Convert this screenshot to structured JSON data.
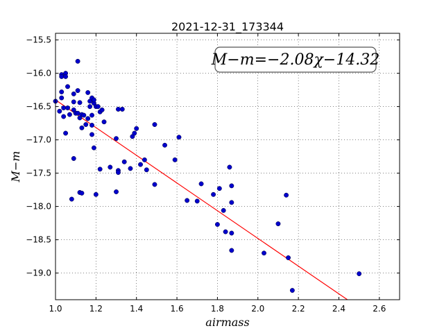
{
  "chart_data": {
    "type": "scatter",
    "title": "2021-12-31_173344",
    "xlabel": "airmass",
    "ylabel": "M−m",
    "annotation": "M−m=−2.08χ−14.32",
    "xlim": [
      1.0,
      2.7
    ],
    "ylim": [
      -19.4,
      -15.4
    ],
    "y_inverted": true,
    "grid": true,
    "x_ticks": [
      1.0,
      1.2,
      1.4,
      1.6,
      1.8,
      2.0,
      2.2,
      2.4,
      2.6
    ],
    "x_tick_labels": [
      "1.0",
      "1.2",
      "1.4",
      "1.6",
      "1.8",
      "2.0",
      "2.2",
      "2.4",
      "2.6"
    ],
    "y_ticks": [
      -15.5,
      -16.0,
      -16.5,
      -17.0,
      -17.5,
      -18.0,
      -18.5,
      -19.0
    ],
    "y_tick_labels": [
      "−15.5",
      "−16.0",
      "−16.5",
      "−17.0",
      "−17.5",
      "−18.0",
      "−18.5",
      "−19.0"
    ],
    "fit_line": {
      "slope": -2.08,
      "intercept": -14.32,
      "color": "#ff0000"
    },
    "marker_color": "#0000cc",
    "points": [
      [
        1.0,
        -16.42
      ],
      [
        1.02,
        -16.57
      ],
      [
        1.03,
        -16.02
      ],
      [
        1.03,
        -16.05
      ],
      [
        1.03,
        -16.28
      ],
      [
        1.03,
        -16.37
      ],
      [
        1.04,
        -16.52
      ],
      [
        1.04,
        -16.65
      ],
      [
        1.05,
        -16.0
      ],
      [
        1.05,
        -16.05
      ],
      [
        1.05,
        -16.9
      ],
      [
        1.06,
        -16.2
      ],
      [
        1.06,
        -16.52
      ],
      [
        1.07,
        -16.62
      ],
      [
        1.08,
        -17.89
      ],
      [
        1.09,
        -16.31
      ],
      [
        1.09,
        -16.43
      ],
      [
        1.09,
        -16.55
      ],
      [
        1.09,
        -17.28
      ],
      [
        1.1,
        -16.6
      ],
      [
        1.1,
        -16.6
      ],
      [
        1.11,
        -16.26
      ],
      [
        1.11,
        -15.82
      ],
      [
        1.11,
        -16.6
      ],
      [
        1.12,
        -16.67
      ],
      [
        1.12,
        -16.44
      ],
      [
        1.12,
        -17.79
      ],
      [
        1.13,
        -17.8
      ],
      [
        1.13,
        -16.62
      ],
      [
        1.13,
        -16.82
      ],
      [
        1.14,
        -16.63
      ],
      [
        1.15,
        -16.77
      ],
      [
        1.16,
        -16.29
      ],
      [
        1.16,
        -16.68
      ],
      [
        1.17,
        -16.5
      ],
      [
        1.17,
        -16.42
      ],
      [
        1.18,
        -16.63
      ],
      [
        1.18,
        -16.78
      ],
      [
        1.18,
        -16.37
      ],
      [
        1.18,
        -16.92
      ],
      [
        1.19,
        -16.45
      ],
      [
        1.19,
        -16.4
      ],
      [
        1.19,
        -17.12
      ],
      [
        1.2,
        -16.5
      ],
      [
        1.2,
        -17.82
      ],
      [
        1.21,
        -16.5
      ],
      [
        1.22,
        -17.44
      ],
      [
        1.22,
        -16.58
      ],
      [
        1.23,
        -16.55
      ],
      [
        1.24,
        -16.73
      ],
      [
        1.27,
        -17.41
      ],
      [
        1.3,
        -17.78
      ],
      [
        1.3,
        -16.98
      ],
      [
        1.31,
        -16.54
      ],
      [
        1.31,
        -17.46
      ],
      [
        1.31,
        -17.49
      ],
      [
        1.33,
        -16.54
      ],
      [
        1.34,
        -17.33
      ],
      [
        1.37,
        -17.43
      ],
      [
        1.38,
        -16.95
      ],
      [
        1.39,
        -16.9
      ],
      [
        1.4,
        -16.83
      ],
      [
        1.42,
        -17.37
      ],
      [
        1.44,
        -17.3
      ],
      [
        1.45,
        -17.45
      ],
      [
        1.49,
        -17.67
      ],
      [
        1.49,
        -16.77
      ],
      [
        1.54,
        -17.08
      ],
      [
        1.59,
        -17.3
      ],
      [
        1.61,
        -16.96
      ],
      [
        1.65,
        -17.91
      ],
      [
        1.7,
        -17.92
      ],
      [
        1.72,
        -17.66
      ],
      [
        1.78,
        -17.82
      ],
      [
        1.8,
        -18.27
      ],
      [
        1.81,
        -17.73
      ],
      [
        1.83,
        -18.06
      ],
      [
        1.84,
        -18.38
      ],
      [
        1.86,
        -17.41
      ],
      [
        1.87,
        -17.94
      ],
      [
        1.87,
        -17.69
      ],
      [
        1.87,
        -18.4
      ],
      [
        1.87,
        -18.66
      ],
      [
        2.03,
        -18.7
      ],
      [
        2.1,
        -18.26
      ],
      [
        2.14,
        -17.83
      ],
      [
        2.15,
        -18.77
      ],
      [
        2.17,
        -19.26
      ],
      [
        2.5,
        -19.01
      ]
    ]
  }
}
